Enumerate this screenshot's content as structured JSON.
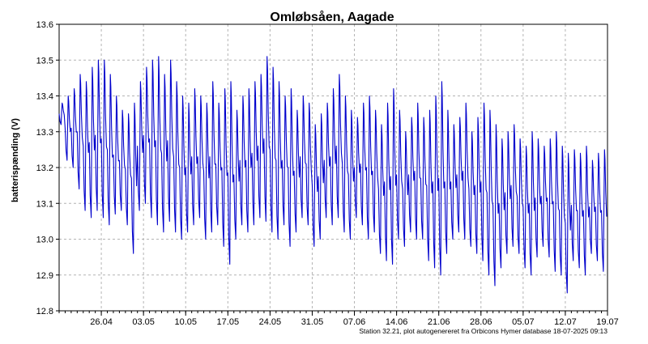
{
  "chart_data": {
    "type": "line",
    "title": "Omløbsåen, Aagade",
    "xlabel": "",
    "ylabel": "batterispænding (V)",
    "footer": "Station 32.21, plot autogenereret fra Orbicons Hymer database 18-07-2025 09:13",
    "xlim": [
      "2025-04-19",
      "2025-07-19"
    ],
    "ylim": [
      12.8,
      13.6
    ],
    "x_ticks": [
      "26.04",
      "03.05",
      "10.05",
      "17.05",
      "24.05",
      "31.05",
      "07.06",
      "14.06",
      "21.06",
      "28.06",
      "05.07",
      "12.07",
      "19.07"
    ],
    "y_ticks": [
      "12.8",
      "12.9",
      "13.0",
      "13.1",
      "13.2",
      "13.3",
      "13.4",
      "13.5",
      "13.6"
    ],
    "grid": true,
    "line_color": "#0000cc",
    "series": [
      {
        "name": "",
        "x": [
          "2025-04-19",
          "2025-04-20",
          "2025-04-21",
          "2025-04-22",
          "2025-04-23",
          "2025-04-24",
          "2025-04-25",
          "2025-04-26",
          "2025-04-27",
          "2025-04-28",
          "2025-04-29",
          "2025-04-30",
          "2025-05-01",
          "2025-05-02",
          "2025-05-03",
          "2025-05-04",
          "2025-05-05",
          "2025-05-06",
          "2025-05-07",
          "2025-05-08",
          "2025-05-09",
          "2025-05-10",
          "2025-05-11",
          "2025-05-12",
          "2025-05-13",
          "2025-05-14",
          "2025-05-15",
          "2025-05-16",
          "2025-05-17",
          "2025-05-18",
          "2025-05-19",
          "2025-05-20",
          "2025-05-21",
          "2025-05-22",
          "2025-05-23",
          "2025-05-24",
          "2025-05-25",
          "2025-05-26",
          "2025-05-27",
          "2025-05-28",
          "2025-05-29",
          "2025-05-30",
          "2025-05-31",
          "2025-06-01",
          "2025-06-02",
          "2025-06-03",
          "2025-06-04",
          "2025-06-05",
          "2025-06-06",
          "2025-06-07",
          "2025-06-08",
          "2025-06-09",
          "2025-06-10",
          "2025-06-11",
          "2025-06-12",
          "2025-06-13",
          "2025-06-14",
          "2025-06-15",
          "2025-06-16",
          "2025-06-17",
          "2025-06-18",
          "2025-06-19",
          "2025-06-20",
          "2025-06-21",
          "2025-06-22",
          "2025-06-23",
          "2025-06-24",
          "2025-06-25",
          "2025-06-26",
          "2025-06-27",
          "2025-06-28",
          "2025-06-29",
          "2025-06-30",
          "2025-07-01",
          "2025-07-02",
          "2025-07-03",
          "2025-07-04",
          "2025-07-05",
          "2025-07-06",
          "2025-07-07",
          "2025-07-08",
          "2025-07-09",
          "2025-07-10",
          "2025-07-11",
          "2025-07-12",
          "2025-07-13",
          "2025-07-14",
          "2025-07-15",
          "2025-07-16",
          "2025-07-17",
          "2025-07-18"
        ],
        "min": [
          13.32,
          13.22,
          13.2,
          13.14,
          13.08,
          13.06,
          13.08,
          13.06,
          13.04,
          13.07,
          13.08,
          13.04,
          12.96,
          13.08,
          13.1,
          13.06,
          13.04,
          13.02,
          13.05,
          13.02,
          13.0,
          13.02,
          13.04,
          13.06,
          13.0,
          13.02,
          13.04,
          12.98,
          12.93,
          13.0,
          13.04,
          13.02,
          13.04,
          13.06,
          13.05,
          13.02,
          13.0,
          13.04,
          12.98,
          13.02,
          13.06,
          13.04,
          12.98,
          13.0,
          13.06,
          13.04,
          13.06,
          13.02,
          13.0,
          13.06,
          13.04,
          13.0,
          13.02,
          12.96,
          12.94,
          12.93,
          13.0,
          12.98,
          13.02,
          13.0,
          13.0,
          12.94,
          12.92,
          12.9,
          12.96,
          13.0,
          13.02,
          13.0,
          12.98,
          12.96,
          12.94,
          12.9,
          12.87,
          12.92,
          12.96,
          12.98,
          12.96,
          12.92,
          12.9,
          12.95,
          12.98,
          12.95,
          12.91,
          12.9,
          12.85,
          12.94,
          12.92,
          12.9,
          12.96,
          12.94,
          12.91
        ],
        "max": [
          13.38,
          13.4,
          13.42,
          13.46,
          13.44,
          13.48,
          13.5,
          13.5,
          13.46,
          13.4,
          13.36,
          13.35,
          13.38,
          13.44,
          13.48,
          13.5,
          13.51,
          13.46,
          13.5,
          13.44,
          13.4,
          13.38,
          13.42,
          13.4,
          13.38,
          13.44,
          13.38,
          13.42,
          13.44,
          13.36,
          13.4,
          13.42,
          13.44,
          13.46,
          13.51,
          13.48,
          13.44,
          13.4,
          13.42,
          13.36,
          13.4,
          13.38,
          13.32,
          13.35,
          13.38,
          13.42,
          13.46,
          13.4,
          13.36,
          13.34,
          13.38,
          13.4,
          13.36,
          13.32,
          13.38,
          13.42,
          13.36,
          13.3,
          13.34,
          13.38,
          13.34,
          13.36,
          13.4,
          13.44,
          13.36,
          13.32,
          13.34,
          13.38,
          13.3,
          13.34,
          13.38,
          13.36,
          13.32,
          13.28,
          13.3,
          13.32,
          13.28,
          13.26,
          13.3,
          13.28,
          13.26,
          13.28,
          13.3,
          13.26,
          13.24,
          13.25,
          13.24,
          13.26,
          13.22,
          13.24,
          13.25
        ]
      }
    ]
  }
}
